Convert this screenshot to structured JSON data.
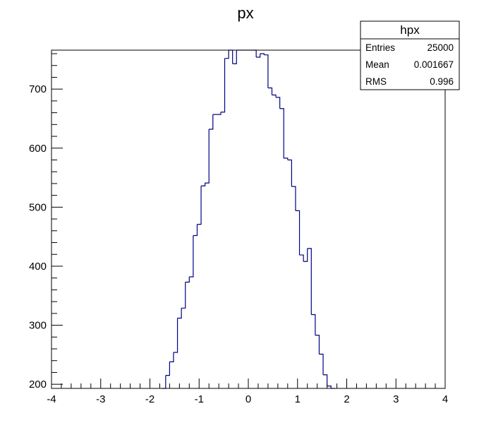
{
  "chart_data": {
    "type": "bar",
    "title": "px",
    "xlabel": "",
    "ylabel": "",
    "xlim": [
      -4,
      4
    ],
    "ylim": [
      193,
      766
    ],
    "bin_width": 0.08,
    "x_ticks": [
      "-4",
      "-3",
      "-2",
      "-1",
      "0",
      "1",
      "2",
      "3",
      "4"
    ],
    "y_ticks": [
      "200",
      "300",
      "400",
      "500",
      "600",
      "700"
    ],
    "grid": false,
    "line_color": "#000080",
    "bins": [
      {
        "x": -1.76,
        "value": 180
      },
      {
        "x": -1.68,
        "value": 215
      },
      {
        "x": -1.6,
        "value": 238
      },
      {
        "x": -1.52,
        "value": 254
      },
      {
        "x": -1.44,
        "value": 312
      },
      {
        "x": -1.36,
        "value": 329
      },
      {
        "x": -1.28,
        "value": 373
      },
      {
        "x": -1.2,
        "value": 382
      },
      {
        "x": -1.12,
        "value": 452
      },
      {
        "x": -1.04,
        "value": 471
      },
      {
        "x": -0.96,
        "value": 536
      },
      {
        "x": -0.88,
        "value": 541
      },
      {
        "x": -0.8,
        "value": 632
      },
      {
        "x": -0.72,
        "value": 657
      },
      {
        "x": -0.64,
        "value": 657
      },
      {
        "x": -0.56,
        "value": 661
      },
      {
        "x": -0.48,
        "value": 752
      },
      {
        "x": -0.4,
        "value": 766
      },
      {
        "x": -0.32,
        "value": 743
      },
      {
        "x": -0.24,
        "value": 768
      },
      {
        "x": -0.16,
        "value": 790
      },
      {
        "x": -0.08,
        "value": 800
      },
      {
        "x": 0.0,
        "value": 800
      },
      {
        "x": 0.08,
        "value": 770
      },
      {
        "x": 0.16,
        "value": 754
      },
      {
        "x": 0.24,
        "value": 760
      },
      {
        "x": 0.32,
        "value": 758
      },
      {
        "x": 0.4,
        "value": 702
      },
      {
        "x": 0.48,
        "value": 690
      },
      {
        "x": 0.56,
        "value": 686
      },
      {
        "x": 0.64,
        "value": 667
      },
      {
        "x": 0.72,
        "value": 583
      },
      {
        "x": 0.8,
        "value": 580
      },
      {
        "x": 0.88,
        "value": 535
      },
      {
        "x": 0.96,
        "value": 494
      },
      {
        "x": 1.04,
        "value": 419
      },
      {
        "x": 1.12,
        "value": 408
      },
      {
        "x": 1.2,
        "value": 430
      },
      {
        "x": 1.28,
        "value": 318
      },
      {
        "x": 1.36,
        "value": 283
      },
      {
        "x": 1.44,
        "value": 251
      },
      {
        "x": 1.52,
        "value": 216
      },
      {
        "x": 1.6,
        "value": 197
      },
      {
        "x": 1.68,
        "value": 150
      }
    ]
  },
  "stats_box": {
    "name": "hpx",
    "rows": [
      {
        "label": "Entries",
        "value": "25000"
      },
      {
        "label": "Mean",
        "value": "0.001667"
      },
      {
        "label": "RMS",
        "value": "0.996"
      }
    ]
  }
}
